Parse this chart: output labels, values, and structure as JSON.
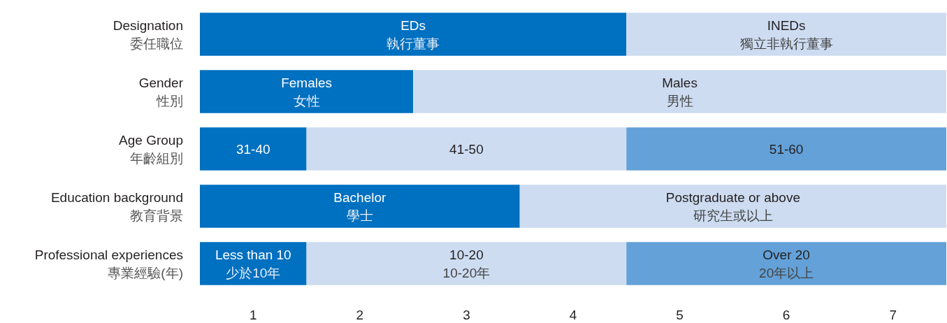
{
  "chart_data": {
    "type": "bar",
    "orientation": "horizontal",
    "stacked": true,
    "categories": [
      "Designation\n委任職位",
      "Gender\n性別",
      "Age Group\n年齡組別",
      "Education background\n教育背景",
      "Professional experiences\n專業經驗(年)"
    ],
    "series": [
      {
        "color": "#0070c0",
        "values": [
          4,
          2,
          1,
          3,
          1
        ],
        "value_labels": [
          "EDs\n執行董事",
          "Females\n女性",
          "31-40",
          "Bachelor\n學士",
          "Less than 10\n少於10年"
        ]
      },
      {
        "color": "#cddcf1",
        "values": [
          3,
          5,
          3,
          4,
          3
        ],
        "value_labels": [
          "INEDs\n獨立非執行董事",
          "Males\n男性",
          "41-50",
          "Postgraduate or above\n研究生或以上",
          "10-20\n10-20年"
        ]
      },
      {
        "color": "#63a1d8",
        "values": [
          null,
          null,
          3,
          null,
          3
        ],
        "value_labels": [
          null,
          null,
          "51-60",
          null,
          "Over 20\n20年以上"
        ]
      }
    ],
    "xlim": [
      0,
      7
    ],
    "xticks": [
      {
        "value": 0.5,
        "label": "1"
      },
      {
        "value": 1.5,
        "label": "2"
      },
      {
        "value": 2.5,
        "label": "3"
      },
      {
        "value": 3.5,
        "label": "4"
      },
      {
        "value": 4.5,
        "label": "5"
      },
      {
        "value": 5.5,
        "label": "6"
      },
      {
        "value": 6.5,
        "label": "7"
      }
    ]
  }
}
